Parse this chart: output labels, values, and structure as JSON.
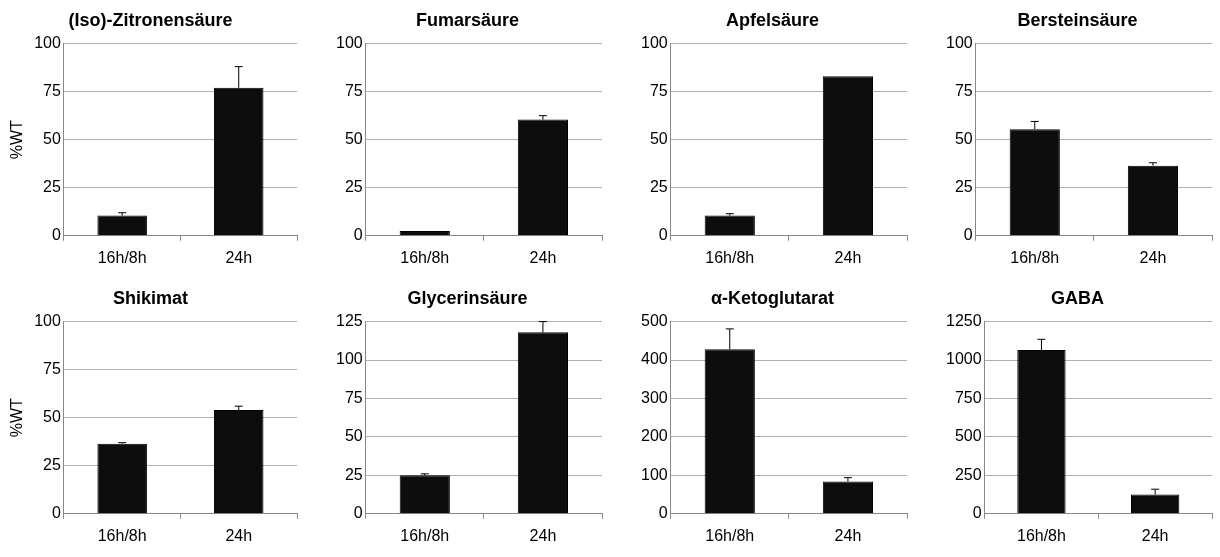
{
  "chart_data": [
    {
      "type": "bar",
      "title": "(Iso)-Zitronensäure",
      "ylabel": "%WT",
      "categories": [
        "16h/8h",
        "24h"
      ],
      "values": [
        10.5,
        77
      ],
      "errors": [
        1.5,
        11
      ],
      "color": "#0d0d0d",
      "ylim": [
        0,
        100
      ],
      "yticks": [
        0,
        25,
        50,
        75,
        100
      ],
      "grid": "y",
      "legend": false
    },
    {
      "type": "bar",
      "title": "Fumarsäure",
      "categories": [
        "16h/8h",
        "24h"
      ],
      "values": [
        2.5,
        60.5
      ],
      "errors": [
        null,
        2
      ],
      "color": "#0d0d0d",
      "ylim": [
        0,
        100
      ],
      "yticks": [
        0,
        25,
        50,
        75,
        100
      ],
      "grid": "y",
      "legend": false
    },
    {
      "type": "bar",
      "title": "Apfelsäure",
      "categories": [
        "16h/8h",
        "24h"
      ],
      "values": [
        10.5,
        83
      ],
      "errors": [
        1,
        null
      ],
      "color": "#0d0d0d",
      "ylim": [
        0,
        100
      ],
      "yticks": [
        0,
        25,
        50,
        75,
        100
      ],
      "grid": "y",
      "legend": false
    },
    {
      "type": "bar",
      "title": "Bersteinsäure",
      "categories": [
        "16h/8h",
        "24h"
      ],
      "values": [
        55.5,
        36.5
      ],
      "errors": [
        4,
        1.5
      ],
      "color": "#0d0d0d",
      "ylim": [
        0,
        100
      ],
      "yticks": [
        0,
        25,
        50,
        75,
        100
      ],
      "grid": "y",
      "legend": false
    },
    {
      "type": "bar",
      "title": "Shikimat",
      "ylabel": "%WT",
      "categories": [
        "16h/8h",
        "24h"
      ],
      "values": [
        36.5,
        54
      ],
      "errors": [
        0.5,
        2
      ],
      "color": "#0d0d0d",
      "ylim": [
        0,
        100
      ],
      "yticks": [
        0,
        25,
        50,
        75,
        100
      ],
      "grid": "y",
      "legend": false
    },
    {
      "type": "bar",
      "title": "Glycerinsäure",
      "categories": [
        "16h/8h",
        "24h"
      ],
      "values": [
        25,
        118
      ],
      "errors": [
        1,
        7
      ],
      "color": "#0d0d0d",
      "ylim": [
        0,
        125
      ],
      "yticks": [
        0,
        25,
        50,
        75,
        100,
        125
      ],
      "grid": "y",
      "legend": false
    },
    {
      "type": "bar",
      "title": "α-Ketoglutarat",
      "categories": [
        "16h/8h",
        "24h"
      ],
      "values": [
        428,
        84
      ],
      "errors": [
        53,
        10
      ],
      "color": "#0d0d0d",
      "ylim": [
        0,
        500
      ],
      "yticks": [
        0,
        100,
        200,
        300,
        400,
        500
      ],
      "grid": "y",
      "legend": false
    },
    {
      "type": "bar",
      "title": "GABA",
      "categories": [
        "16h/8h",
        "24h"
      ],
      "values": [
        1065,
        125
      ],
      "errors": [
        70,
        35
      ],
      "color": "#0d0d0d",
      "ylim": [
        0,
        1250
      ],
      "yticks": [
        0,
        250,
        500,
        750,
        1000,
        1250
      ],
      "grid": "y",
      "legend": false
    }
  ]
}
